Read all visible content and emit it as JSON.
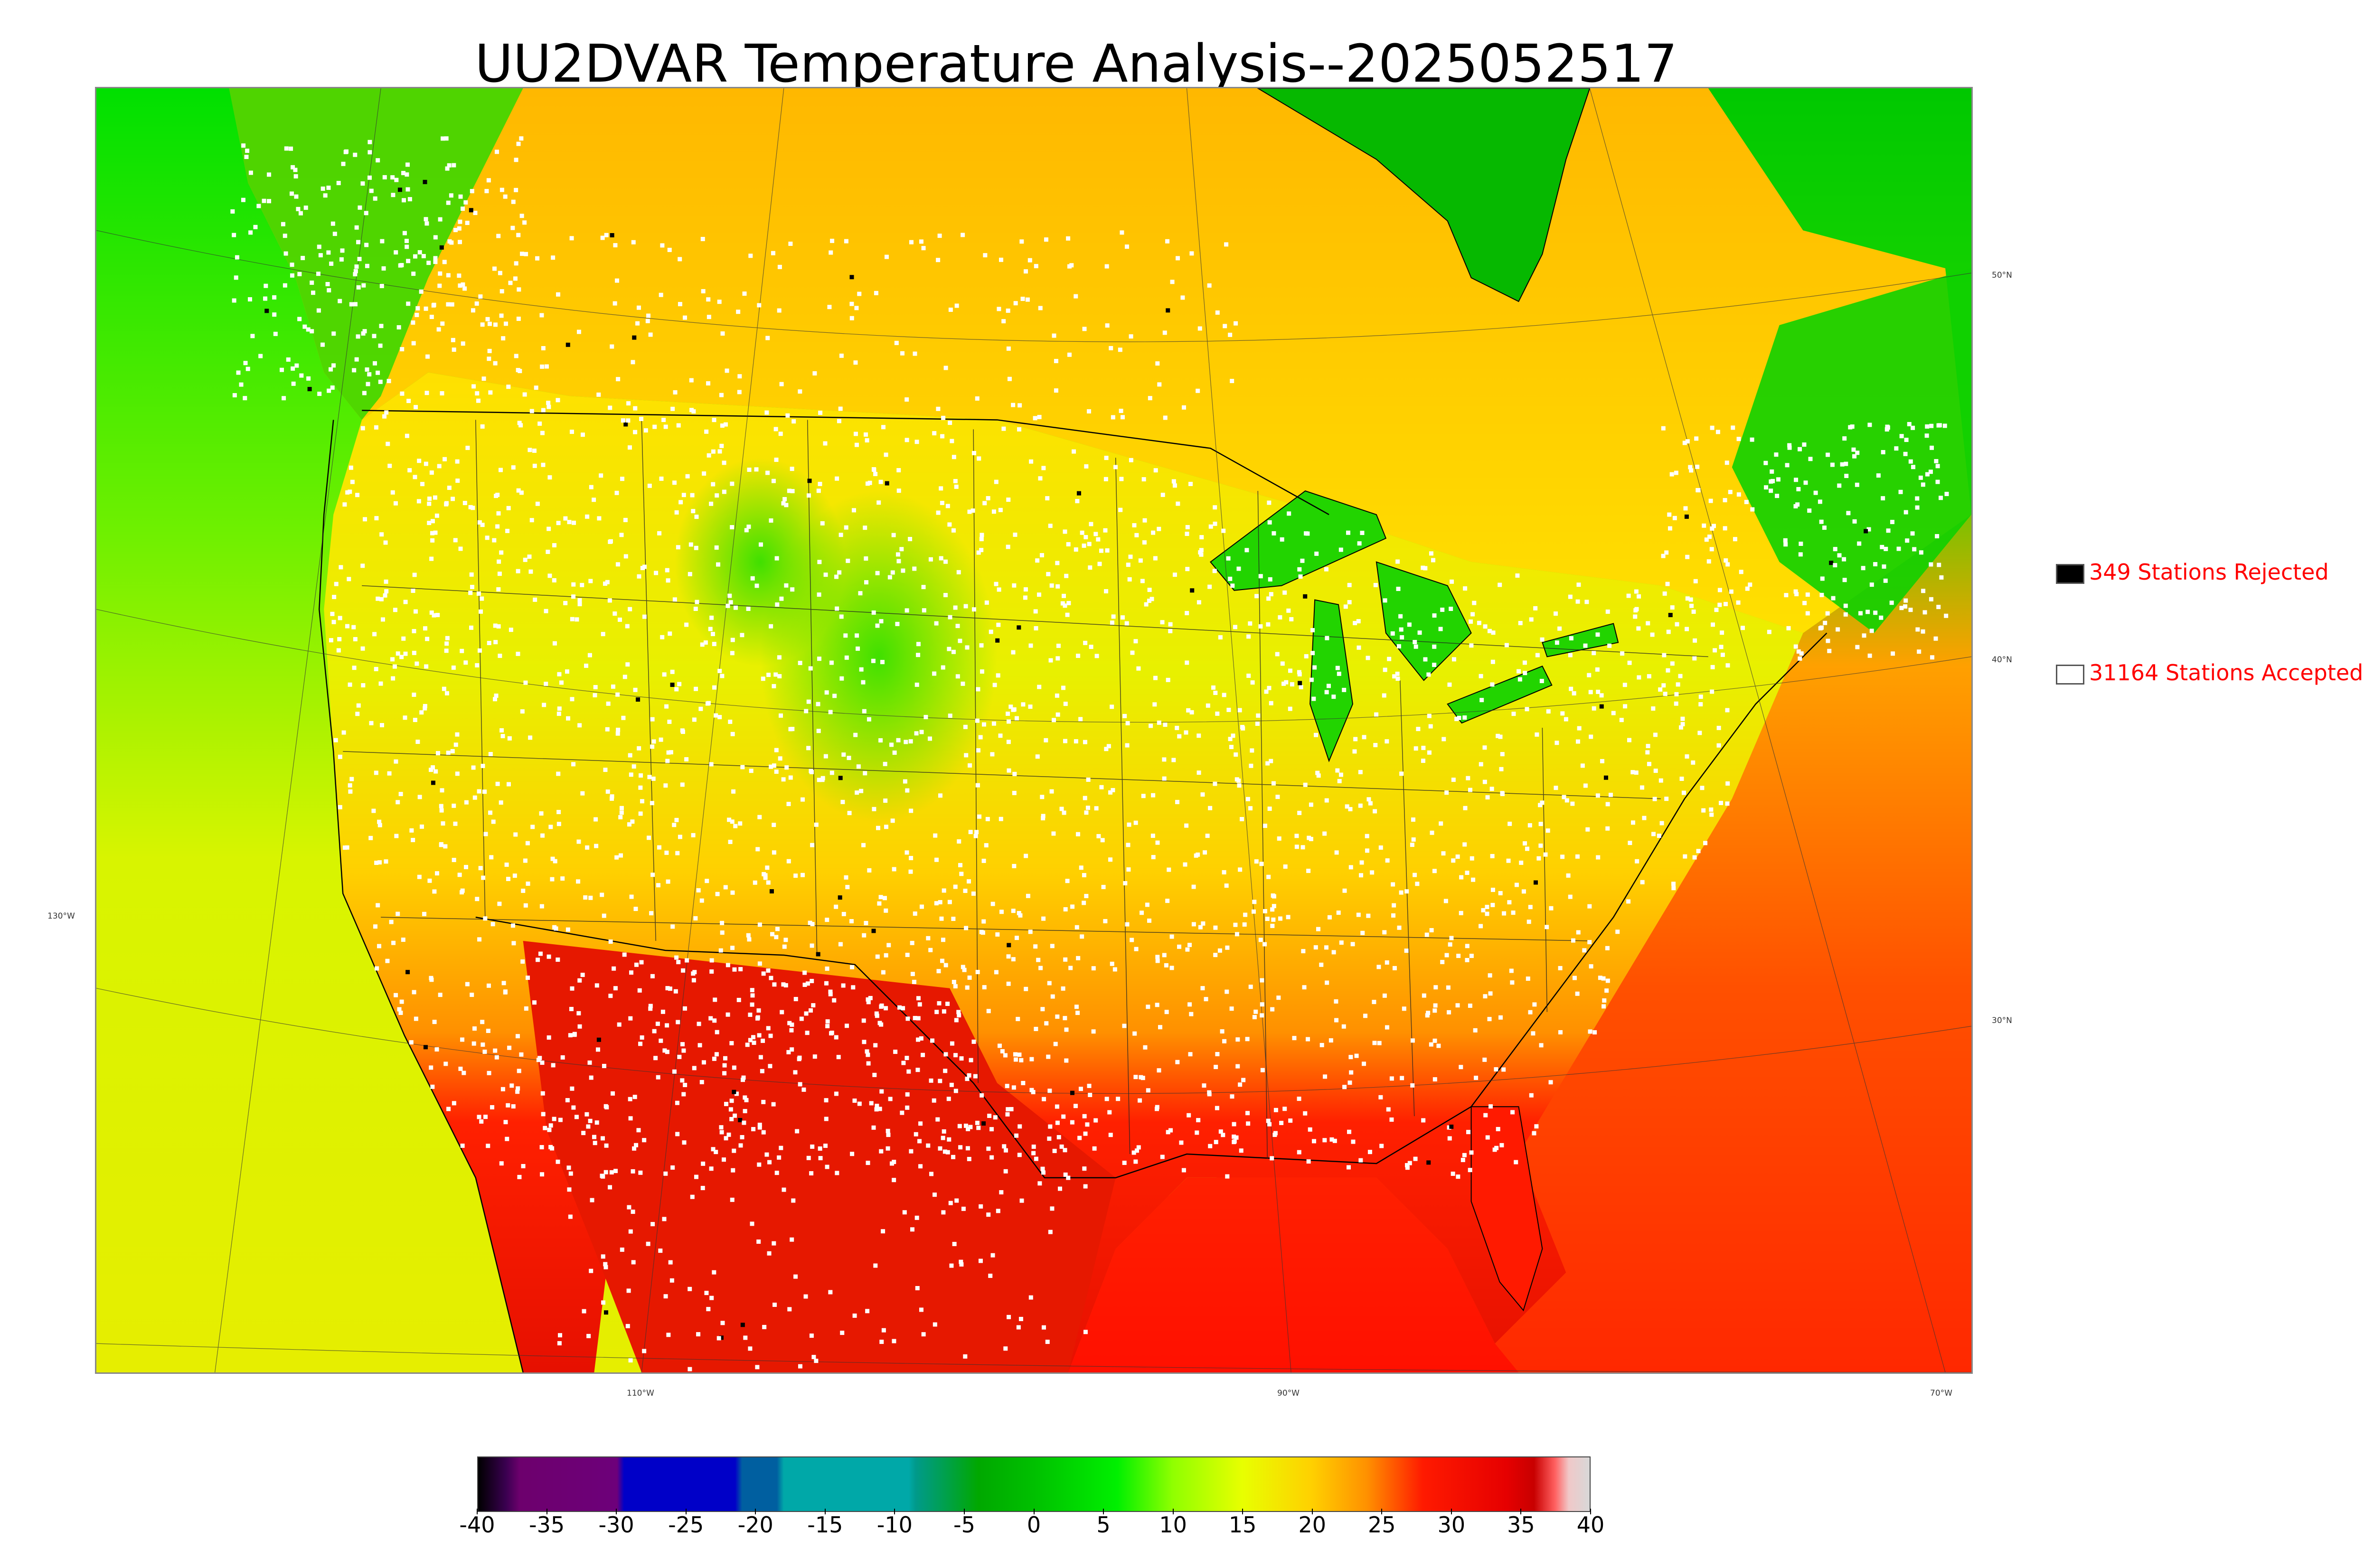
{
  "title": "UU2DVAR Temperature Analysis--2025052517",
  "map": {
    "lat_labels": [
      "50°N",
      "40°N",
      "30°N"
    ],
    "lon_labels": [
      "130°W",
      "110°W",
      "90°W",
      "70°W"
    ],
    "colors": {
      "ocean_pacific": "#e6ee00",
      "ocean_atlantic": "#ff5a00",
      "gulf": "#ff1a00",
      "canada": "#ffc000",
      "great_lakes": "#22d400",
      "hudson_bay": "#06b800",
      "station_accepted": "#ffffff",
      "station_rejected": "#000000",
      "borders": "#000000"
    }
  },
  "legend": {
    "rejected": {
      "count": "349",
      "text": "349 Stations Rejected",
      "swatch": "#000000"
    },
    "accepted": {
      "count": "31164",
      "text": "31164 Stations Accepted",
      "swatch": "#ffffff"
    }
  },
  "colorbar": {
    "min": -40,
    "max": 40,
    "tick_labels": [
      "-40",
      "-35",
      "-30",
      "-25",
      "-20",
      "-15",
      "-10",
      "-5",
      "0",
      "5",
      "10",
      "15",
      "20",
      "25",
      "30",
      "35",
      "40"
    ],
    "stops": [
      {
        "v": -40,
        "c": "#000000"
      },
      {
        "v": -38,
        "c": "#3a0050"
      },
      {
        "v": -37,
        "c": "#6d006d"
      },
      {
        "v": -30,
        "c": "#6d007a"
      },
      {
        "v": -29.5,
        "c": "#0000c8"
      },
      {
        "v": -21.5,
        "c": "#0000c8"
      },
      {
        "v": -21,
        "c": "#005fa0"
      },
      {
        "v": -18.5,
        "c": "#005fa0"
      },
      {
        "v": -18,
        "c": "#00a8a8"
      },
      {
        "v": -9,
        "c": "#00a8a8"
      },
      {
        "v": -8.5,
        "c": "#009a8a"
      },
      {
        "v": -6.5,
        "c": "#00a050"
      },
      {
        "v": -4,
        "c": "#00a800"
      },
      {
        "v": 0,
        "c": "#00c000"
      },
      {
        "v": 6,
        "c": "#00f000"
      },
      {
        "v": 10,
        "c": "#90ff00"
      },
      {
        "v": 15,
        "c": "#e8ff00"
      },
      {
        "v": 20,
        "c": "#ffd000"
      },
      {
        "v": 24,
        "c": "#ff9000"
      },
      {
        "v": 28,
        "c": "#ff1a00"
      },
      {
        "v": 34,
        "c": "#e60000"
      },
      {
        "v": 36,
        "c": "#c80000"
      },
      {
        "v": 37.5,
        "c": "#ff6060"
      },
      {
        "v": 38.5,
        "c": "#f0c8c8"
      },
      {
        "v": 40,
        "c": "#d8d8d8"
      }
    ]
  }
}
